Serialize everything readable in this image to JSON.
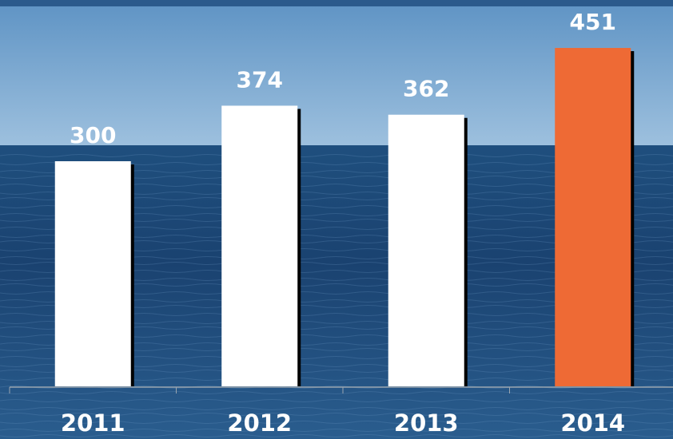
{
  "chart_data": {
    "type": "bar",
    "categories": [
      "2011",
      "2012",
      "2013",
      "2014"
    ],
    "values": [
      300,
      374,
      362,
      451
    ],
    "colors": [
      "#ffffff",
      "#ffffff",
      "#ffffff",
      "#ee6a35"
    ],
    "ylim": [
      0,
      500
    ]
  }
}
